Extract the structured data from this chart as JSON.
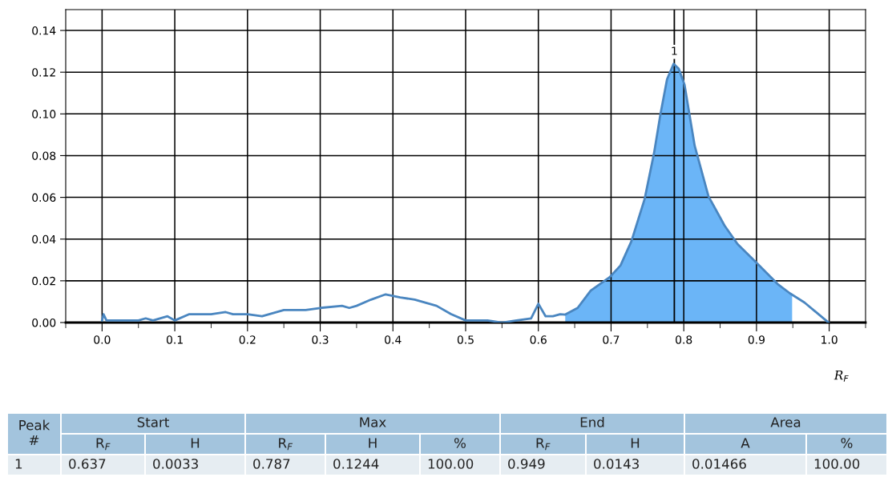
{
  "chart_data": [
    {
      "type": "line",
      "xlabel": "R$_{F}$",
      "xlim": [
        -0.05,
        1.05
      ],
      "ylim": [
        0,
        0.15
      ],
      "xticks": [
        {
          "value": 0.0,
          "label": "0.0"
        },
        {
          "value": 0.1,
          "label": "0.1"
        },
        {
          "value": 0.2,
          "label": "0.2"
        },
        {
          "value": 0.3,
          "label": "0.3"
        },
        {
          "value": 0.4,
          "label": "0.4"
        },
        {
          "value": 0.5,
          "label": "0.5"
        },
        {
          "value": 0.6,
          "label": "0.6"
        },
        {
          "value": 0.7,
          "label": "0.7"
        },
        {
          "value": 0.8,
          "label": "0.8"
        },
        {
          "value": 0.9,
          "label": "0.9"
        },
        {
          "value": 1.0,
          "label": "1.0"
        },
        {
          "value": -0.05,
          "label": null
        },
        {
          "value": 0.05,
          "label": null
        },
        {
          "value": 0.15,
          "label": null
        },
        {
          "value": 0.25,
          "label": null
        },
        {
          "value": 0.35,
          "label": null
        },
        {
          "value": 0.45,
          "label": null
        },
        {
          "value": 0.55,
          "label": null
        },
        {
          "value": 0.65,
          "label": null
        },
        {
          "value": 0.75,
          "label": null
        },
        {
          "value": 0.85,
          "label": null
        },
        {
          "value": 0.95,
          "label": null
        },
        {
          "value": 1.05,
          "label": null
        }
      ],
      "yticks": [
        {
          "value": 0,
          "label": "0.00"
        },
        {
          "value": 0.02,
          "label": "0.02"
        },
        {
          "value": 0.04,
          "label": "0.04"
        },
        {
          "value": 0.06,
          "label": "0.06"
        },
        {
          "value": 0.08,
          "label": "0.08"
        },
        {
          "value": 0.1,
          "label": "0.10"
        },
        {
          "value": 0.12,
          "label": "0.12"
        },
        {
          "value": 0.14,
          "label": "0.14"
        }
      ],
      "grid": true,
      "ref_lines": [
        {
          "axis": "x",
          "value": 0.787,
          "label": "1",
          "color": "#000000"
        }
      ],
      "series": [
        {
          "type": "area",
          "color": "#6bb5f7",
          "x": [
            0.637,
            0.654,
            0.672,
            0.698,
            0.713,
            0.728,
            0.746,
            0.759,
            0.768,
            0.777,
            0.786,
            0.793,
            0.801,
            0.815,
            0.834,
            0.856,
            0.874,
            0.9,
            0.929,
            0.949
          ],
          "values": [
            0.0038,
            0.007,
            0.0153,
            0.0217,
            0.0274,
            0.039,
            0.059,
            0.081,
            0.1,
            0.1166,
            0.124,
            0.1217,
            0.114,
            0.0847,
            0.0605,
            0.0465,
            0.0376,
            0.0287,
            0.0185,
            0.0135
          ]
        },
        {
          "type": "line",
          "color": "#4a86c0",
          "x": [
            0.0,
            0.002,
            0.006,
            0.05,
            0.06,
            0.07,
            0.09,
            0.1,
            0.12,
            0.15,
            0.17,
            0.18,
            0.2,
            0.22,
            0.25,
            0.28,
            0.3,
            0.33,
            0.34,
            0.35,
            0.37,
            0.39,
            0.41,
            0.43,
            0.46,
            0.48,
            0.5,
            0.53,
            0.55,
            0.57,
            0.59,
            0.6,
            0.61,
            0.62,
            0.63,
            0.637,
            0.654,
            0.672,
            0.698,
            0.713,
            0.728,
            0.746,
            0.759,
            0.768,
            0.777,
            0.786,
            0.793,
            0.801,
            0.815,
            0.834,
            0.856,
            0.874,
            0.9,
            0.929,
            0.946,
            0.966,
            0.999
          ],
          "values": [
            0.001,
            0.004,
            0.001,
            0.001,
            0.002,
            0.001,
            0.003,
            0.001,
            0.004,
            0.004,
            0.005,
            0.004,
            0.004,
            0.003,
            0.006,
            0.006,
            0.007,
            0.008,
            0.007,
            0.008,
            0.011,
            0.0135,
            0.012,
            0.011,
            0.008,
            0.004,
            0.001,
            0.001,
            0.0,
            0.001,
            0.002,
            0.009,
            0.003,
            0.003,
            0.004,
            0.0038,
            0.007,
            0.0153,
            0.0217,
            0.0274,
            0.039,
            0.059,
            0.081,
            0.1,
            0.1166,
            0.124,
            0.1217,
            0.114,
            0.0847,
            0.0605,
            0.0465,
            0.0376,
            0.0287,
            0.0185,
            0.014,
            0.0096,
            0.0
          ]
        }
      ]
    },
    {
      "type": "other",
      "annotations": [
        "Peak\n#",
        "Start",
        "Max",
        "End",
        "Area",
        "R$_{F}$",
        "H",
        "R$_{F}$",
        "H",
        "%",
        "R$_{F}$",
        "H",
        "A",
        "%",
        "1",
        "0.637",
        "0.0033",
        "0.787",
        "0.1244",
        "100.00",
        "0.949",
        "0.0143",
        "0.01466",
        "100.00"
      ]
    }
  ]
}
